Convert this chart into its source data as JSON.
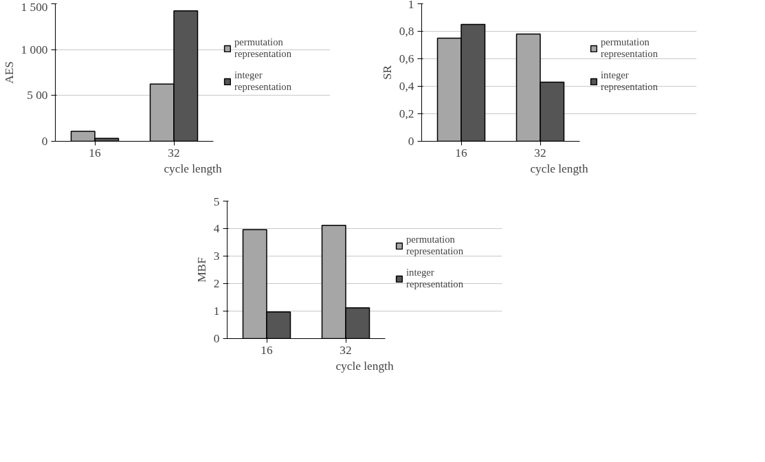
{
  "chart_data": [
    {
      "type": "bar",
      "categories": [
        "16",
        "32"
      ],
      "xlabel": "cycle length",
      "ylabel": "AES",
      "ylim": [
        0,
        1500
      ],
      "yticks": [
        0,
        {
          "value": 500,
          "label": "5 00"
        },
        {
          "value": 1000,
          "label": "1 000"
        },
        {
          "value": 1500,
          "label": "1 500"
        }
      ],
      "grid": "y",
      "legend": "right",
      "series": [
        {
          "name": "permutation representation",
          "color": "#a6a6a6",
          "values": [
            109,
            625
          ]
        },
        {
          "name": "integer representation",
          "color": "#555555",
          "values": [
            31,
            1424
          ]
        }
      ]
    },
    {
      "type": "bar",
      "categories": [
        "16",
        "32"
      ],
      "xlabel": "cycle length",
      "ylabel": "SR",
      "ylim": [
        0,
        1
      ],
      "yticks": [
        0,
        {
          "value": 0.2,
          "label": "0,2"
        },
        {
          "value": 0.4,
          "label": "0,4"
        },
        {
          "value": 0.6,
          "label": "0,6"
        },
        {
          "value": 0.8,
          "label": "0,8"
        },
        1
      ],
      "grid": "y",
      "legend": "right",
      "series": [
        {
          "name": "permutation representation",
          "color": "#a6a6a6",
          "values": [
            0.75,
            0.78
          ]
        },
        {
          "name": "integer representation",
          "color": "#555555",
          "values": [
            0.85,
            0.43
          ]
        }
      ]
    },
    {
      "type": "bar",
      "categories": [
        "16",
        "32"
      ],
      "xlabel": "cycle length",
      "ylabel": "MBF",
      "ylim": [
        0,
        5
      ],
      "yticks": [
        0,
        1,
        2,
        3,
        4,
        5
      ],
      "grid": "y",
      "legend": "right",
      "series": [
        {
          "name": "permutation representation",
          "color": "#a6a6a6",
          "values": [
            3.96,
            4.12
          ]
        },
        {
          "name": "integer representation",
          "color": "#555555",
          "values": [
            0.97,
            1.12
          ]
        }
      ]
    }
  ]
}
